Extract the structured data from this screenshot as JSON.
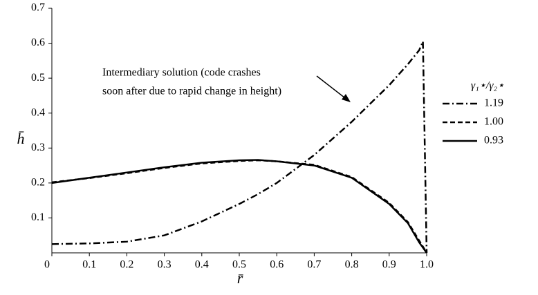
{
  "chart_data": {
    "type": "line",
    "x_label": "r̄",
    "y_label": "h̄",
    "annotation": [
      "Intermediary solution (code crashes",
      "soon after due to rapid change in height)"
    ],
    "legend_title": "γ₁⋆/γ₂⋆",
    "legend": "right",
    "grid": false,
    "x": [
      0,
      0.1,
      0.2,
      0.3,
      0.4,
      0.5,
      0.55,
      0.6,
      0.7,
      0.8,
      0.9,
      0.95,
      0.98,
      0.99,
      1.0
    ],
    "series": [
      {
        "name": "1.19",
        "color": "#000000",
        "dash": "10 4 2 4",
        "values": [
          0.025,
          0.027,
          0.032,
          0.05,
          0.09,
          0.14,
          0.168,
          0.2,
          0.28,
          0.375,
          0.48,
          0.54,
          0.58,
          0.605,
          0
        ]
      },
      {
        "name": "1.00",
        "color": "#000000",
        "dash": "7 4",
        "values": [
          0.202,
          0.214,
          0.228,
          0.243,
          0.256,
          0.263,
          0.265,
          0.262,
          0.252,
          0.217,
          0.143,
          0.088,
          0.035,
          0.018,
          0
        ]
      },
      {
        "name": "0.93",
        "color": "#000000",
        "dash": "none",
        "values": [
          0.2,
          0.215,
          0.23,
          0.245,
          0.258,
          0.265,
          0.266,
          0.262,
          0.25,
          0.215,
          0.14,
          0.085,
          0.03,
          0.015,
          0
        ]
      }
    ],
    "xlim": [
      0,
      1
    ],
    "ylim": [
      0,
      0.7
    ],
    "xticks": [
      0,
      0.1,
      0.2,
      0.3,
      0.4,
      0.5,
      0.6,
      0.7,
      0.8,
      0.9,
      {
        "value": 1,
        "label": "1.0"
      }
    ],
    "yticks": [
      0.1,
      0.2,
      0.3,
      0.4,
      0.5,
      0.6,
      0.7
    ]
  }
}
